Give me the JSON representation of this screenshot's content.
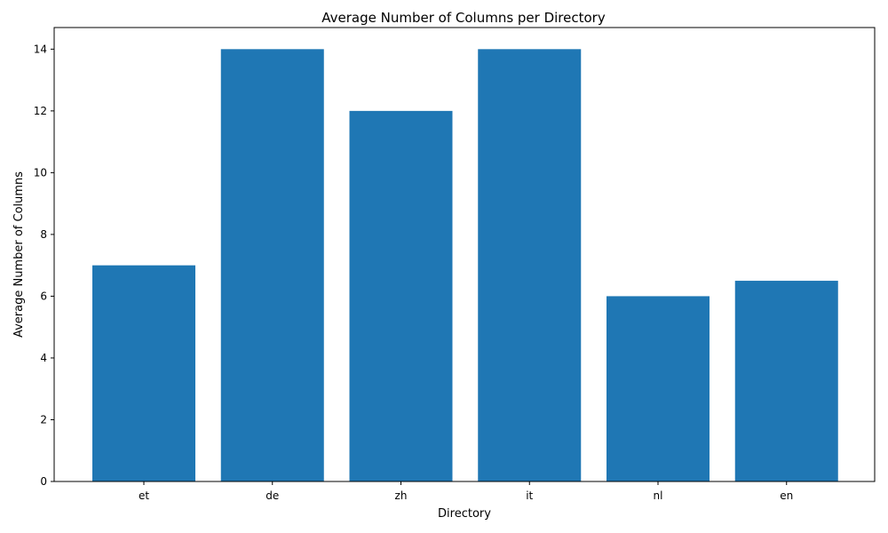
{
  "chart_data": {
    "type": "bar",
    "title": "Average Number of Columns per Directory",
    "xlabel": "Directory",
    "ylabel": "Average Number of Columns",
    "categories": [
      "et",
      "de",
      "zh",
      "it",
      "nl",
      "en"
    ],
    "values": [
      7,
      14,
      12,
      14,
      6,
      6.5
    ],
    "ylim": [
      0,
      14.7
    ],
    "yticks": [
      0,
      2,
      4,
      6,
      8,
      10,
      12,
      14
    ],
    "bar_color": "#1f77b4",
    "grid": false,
    "legend": "none"
  }
}
